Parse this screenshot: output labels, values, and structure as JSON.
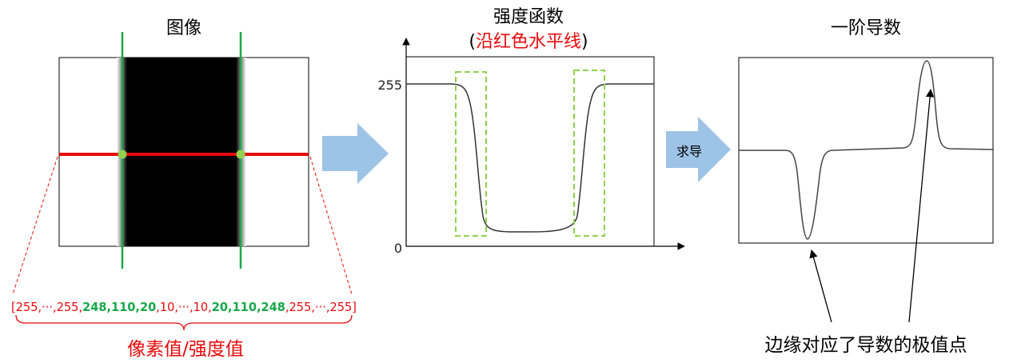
{
  "panel1": {
    "title": "图像",
    "pixels_prefix": "[255,···,255,",
    "pixels_edge_left": "248,110,20",
    "pixels_middle": ",10,···,10,",
    "pixels_edge_right": "20,110,248",
    "pixels_suffix": ",255,···,255]",
    "caption": "像素值/强度值"
  },
  "panel2": {
    "title": "强度函数",
    "subtitle_open": "(",
    "subtitle_red": "沿红色水平线",
    "subtitle_close": ")",
    "y_tick_high": "255",
    "y_tick_low": "0"
  },
  "arrow2": {
    "label": "求导"
  },
  "panel3": {
    "title": "一阶导数",
    "caption": "边缘对应了导数的极值点"
  },
  "colors": {
    "red": "#e8090b",
    "green": "#1aa84a",
    "arrow": "#9dc3e6",
    "highlight_box": "#92d050"
  }
}
